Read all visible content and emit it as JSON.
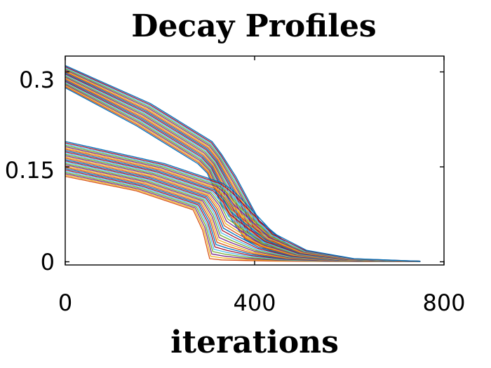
{
  "chart_data": {
    "type": "line",
    "title": "Decay Profiles",
    "xlabel": "iterations",
    "ylabel": "",
    "xlim": [
      0,
      800
    ],
    "ylim": [
      -0.005,
      0.325
    ],
    "xticks": [
      0,
      400,
      800
    ],
    "xtick_labels": [
      "0",
      "400",
      "800"
    ],
    "yticks": [
      0,
      0.15,
      0.3
    ],
    "ytick_labels": [
      "0",
      "0.15",
      "0.3"
    ],
    "grid": false,
    "legend": "none",
    "series_groups": [
      {
        "count": 22,
        "x": [
          0,
          150,
          280,
          300,
          330,
          380,
          450,
          550,
          650,
          750
        ],
        "y_first": [
          0.275,
          0.215,
          0.155,
          0.14,
          0.09,
          0.035,
          0.012,
          0.003,
          0.001,
          0.0005
        ],
        "y_last": [
          0.31,
          0.25,
          0.19,
          0.17,
          0.135,
          0.065,
          0.022,
          0.006,
          0.002,
          0.001
        ],
        "x_shift_last": 30
      },
      {
        "count": 28,
        "x": [
          0,
          150,
          270,
          290,
          305,
          330,
          380,
          450,
          550,
          650,
          750
        ],
        "y_first": [
          0.135,
          0.112,
          0.082,
          0.05,
          0.005,
          0.003,
          0.002,
          0.001,
          0.0005,
          0.0003,
          0.0002
        ],
        "y_last": [
          0.19,
          0.155,
          0.125,
          0.115,
          0.105,
          0.085,
          0.045,
          0.018,
          0.005,
          0.002,
          0.001
        ],
        "x_shift_last": 60
      }
    ],
    "colors": [
      "#0072bd",
      "#d95319",
      "#edb120",
      "#7e2f8e",
      "#77ac30",
      "#4dbeee",
      "#a2142f"
    ]
  }
}
